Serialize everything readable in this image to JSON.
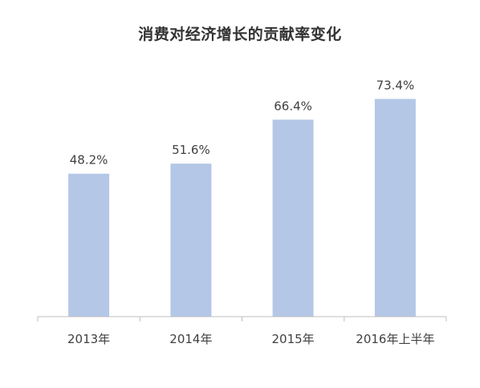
{
  "chart_data": {
    "type": "bar",
    "title": "消费对经济增长的贡献率变化",
    "categories": [
      "2013年",
      "2014年",
      "2015年",
      "2016年上半年"
    ],
    "values": [
      48.2,
      51.6,
      66.4,
      73.4
    ],
    "data_labels": [
      "48.2%",
      "51.6%",
      "66.4%",
      "73.4%"
    ],
    "xlabel": "",
    "ylabel": "",
    "ylim": [
      0,
      80
    ],
    "grid": false,
    "legend": "none",
    "bar_color": "#b4c7e7",
    "axis_color": "#bfbfbf",
    "text_color": "#404040"
  }
}
